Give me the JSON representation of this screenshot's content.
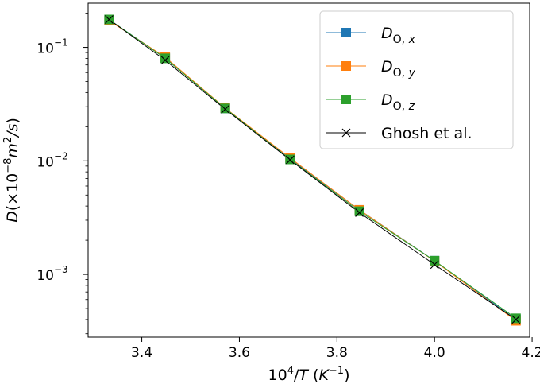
{
  "chart_data": {
    "type": "line",
    "title": "",
    "xlabel": "10^4/T (K^-1)",
    "ylabel": "D(×10^-8 m^2/s)",
    "yscale": "log",
    "xlim": [
      3.29,
      4.195
    ],
    "ylim": [
      0.00028,
      0.245
    ],
    "xticks": [
      3.4,
      3.6,
      3.8,
      4.0,
      4.2
    ],
    "xtick_labels": [
      "3.4",
      "3.6",
      "3.8",
      "4.0",
      "4.2"
    ],
    "yticks": [
      0.001,
      0.01,
      0.1
    ],
    "ytick_labels": [
      "10^-3",
      "10^-2",
      "10^-1"
    ],
    "legend_position": "top-right",
    "x": [
      3.333,
      3.448,
      3.571,
      3.704,
      3.846,
      4.0,
      4.167
    ],
    "series": [
      {
        "name": "D_O,x",
        "legend_main": "D",
        "legend_sub": "O, x",
        "color": "#1f77b4",
        "marker": "square",
        "values": [
          0.175,
          0.081,
          0.029,
          0.0104,
          0.0037,
          0.00132,
          0.0004
        ]
      },
      {
        "name": "D_O,y",
        "legend_main": "D",
        "legend_sub": "O, y",
        "color": "#ff7f0e",
        "marker": "square",
        "values": [
          0.172,
          0.082,
          0.0292,
          0.0106,
          0.0037,
          0.00131,
          0.00039
        ]
      },
      {
        "name": "D_O,z",
        "legend_main": "D",
        "legend_sub": "O, z",
        "color": "#2ca02c",
        "marker": "square",
        "values": [
          0.176,
          0.08,
          0.029,
          0.0103,
          0.0036,
          0.00132,
          0.00041
        ]
      },
      {
        "name": "Ghosh et al.",
        "legend_main": "Ghosh et al.",
        "legend_sub": "",
        "color": "#000000",
        "marker": "x",
        "values": [
          0.176,
          0.077,
          0.0285,
          0.0102,
          0.0035,
          0.00122,
          0.0004
        ]
      }
    ]
  }
}
